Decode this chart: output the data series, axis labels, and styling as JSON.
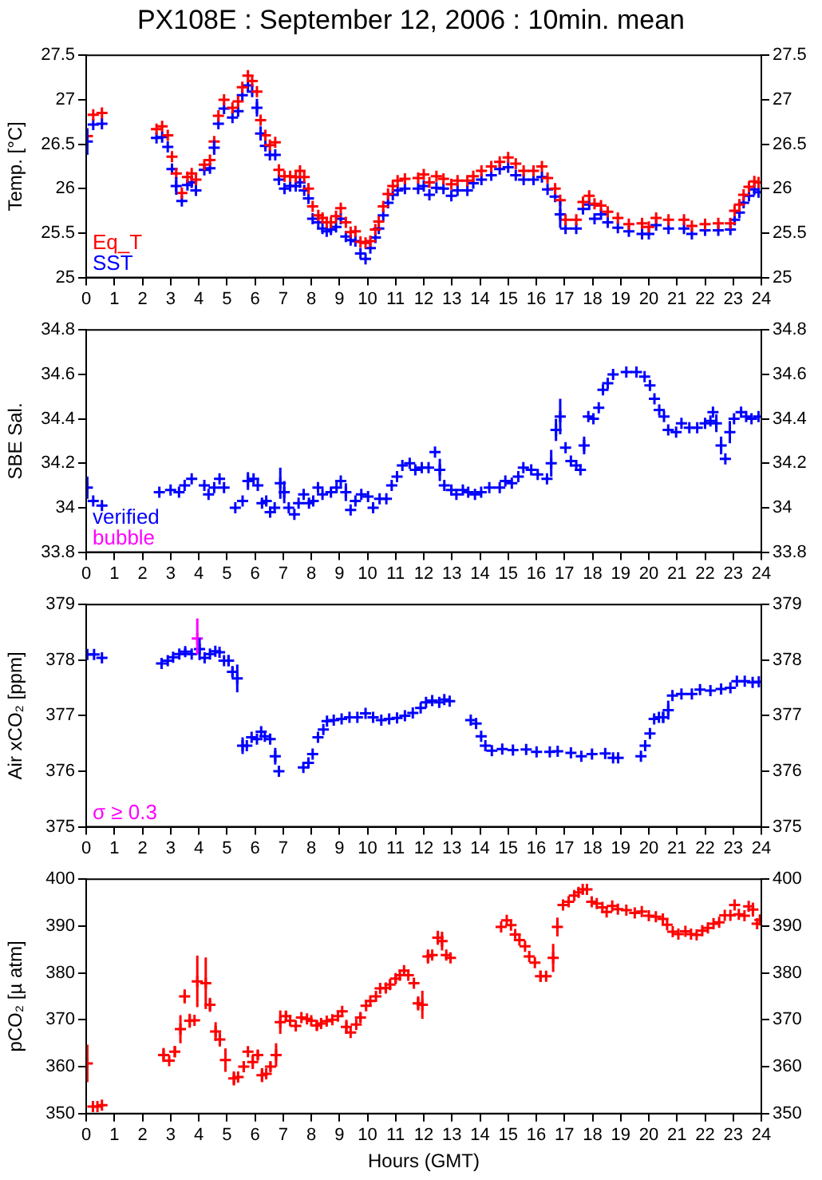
{
  "chart_data": [
    {
      "type": "scatter",
      "title": "PX108E : September 12, 2006 : 10min. mean",
      "ylabel": "Temp. [°C]",
      "marker": "cross",
      "legend": "bottom left",
      "xlim": [
        0,
        24
      ],
      "xticks": [
        0,
        1,
        2,
        3,
        4,
        5,
        6,
        7,
        8,
        9,
        10,
        11,
        12,
        13,
        14,
        15,
        16,
        17,
        18,
        19,
        20,
        21,
        22,
        23,
        24
      ],
      "ylim": [
        25,
        27.5
      ],
      "yticks": [
        25,
        25.5,
        26,
        26.5,
        27,
        27.5
      ],
      "y2lim": [
        25,
        27.5
      ],
      "y2ticks": [
        25,
        25.5,
        26,
        26.5,
        27,
        27.5
      ],
      "x": [
        0.04,
        0.25,
        0.56,
        2.5,
        2.7,
        2.9,
        3.05,
        3.2,
        3.4,
        3.6,
        3.75,
        3.9,
        4.2,
        4.4,
        4.55,
        4.7,
        4.9,
        5.2,
        5.4,
        5.55,
        5.75,
        5.9,
        6.07,
        6.2,
        6.37,
        6.53,
        6.72,
        6.85,
        7.05,
        7.25,
        7.45,
        7.6,
        7.75,
        7.9,
        8.05,
        8.25,
        8.4,
        8.55,
        8.7,
        8.88,
        9.05,
        9.23,
        9.4,
        9.57,
        9.75,
        9.93,
        10.1,
        10.28,
        10.4,
        10.56,
        10.73,
        10.9,
        11.07,
        11.33,
        11.8,
        12.0,
        12.2,
        12.45,
        12.7,
        12.98,
        13.2,
        13.55,
        13.76,
        14.05,
        14.4,
        14.7,
        15.0,
        15.27,
        15.55,
        15.9,
        16.2,
        16.4,
        16.67,
        16.85,
        17.04,
        17.42,
        17.66,
        17.88,
        18.07,
        18.3,
        18.54,
        18.9,
        19.29,
        19.76,
        20.0,
        20.26,
        20.7,
        21.25,
        21.53,
        22.0,
        22.47,
        22.9,
        23.05,
        23.22,
        23.37,
        23.56,
        23.75,
        23.9
      ],
      "series": [
        {
          "name": "Eq_T",
          "color": "#ff0000",
          "values": [
            26.59,
            26.83,
            26.85,
            26.67,
            26.7,
            26.6,
            26.36,
            26.17,
            25.95,
            26.13,
            26.17,
            26.1,
            26.27,
            26.32,
            26.53,
            26.82,
            27.0,
            26.91,
            26.98,
            27.14,
            27.27,
            27.21,
            27.09,
            26.77,
            26.6,
            26.49,
            26.52,
            26.21,
            26.14,
            26.14,
            26.13,
            26.2,
            26.13,
            26.0,
            25.8,
            25.7,
            25.67,
            25.62,
            25.62,
            25.69,
            25.78,
            25.62,
            25.51,
            25.52,
            25.4,
            25.39,
            25.41,
            25.54,
            25.63,
            25.8,
            25.94,
            26.03,
            26.09,
            26.11,
            26.12,
            26.16,
            26.07,
            26.14,
            26.11,
            26.05,
            26.09,
            26.09,
            26.14,
            26.2,
            26.25,
            26.3,
            26.35,
            26.28,
            26.2,
            26.2,
            26.25,
            26.12,
            26.0,
            25.87,
            25.65,
            25.65,
            25.85,
            25.92,
            25.83,
            25.81,
            25.74,
            25.67,
            25.6,
            25.61,
            25.57,
            25.67,
            25.65,
            25.65,
            25.58,
            25.6,
            25.61,
            25.61,
            25.75,
            25.82,
            25.93,
            26.02,
            26.08,
            26.07
          ]
        },
        {
          "name": "SST",
          "color": "#0000ff",
          "values": [
            26.53,
            26.72,
            26.73,
            26.57,
            26.58,
            26.47,
            26.22,
            26.03,
            25.86,
            26.04,
            26.07,
            25.98,
            26.21,
            26.23,
            26.46,
            26.73,
            26.9,
            26.8,
            26.87,
            27.05,
            27.16,
            27.09,
            26.91,
            26.62,
            26.48,
            26.38,
            26.38,
            26.1,
            26.0,
            26.03,
            26.03,
            26.07,
            25.98,
            25.89,
            25.66,
            25.62,
            25.55,
            25.52,
            25.54,
            25.57,
            25.66,
            25.46,
            25.42,
            25.41,
            25.27,
            25.21,
            25.33,
            25.45,
            25.55,
            25.7,
            25.84,
            25.93,
            25.98,
            26.0,
            26.0,
            26.03,
            25.93,
            26.01,
            26.0,
            25.92,
            25.98,
            25.98,
            26.06,
            26.1,
            26.15,
            26.22,
            26.24,
            26.15,
            26.1,
            26.1,
            26.13,
            25.99,
            25.91,
            25.71,
            25.55,
            25.55,
            25.77,
            25.82,
            25.66,
            25.71,
            25.62,
            25.56,
            25.52,
            25.49,
            25.49,
            25.59,
            25.55,
            25.55,
            25.49,
            25.53,
            25.53,
            25.54,
            25.65,
            25.73,
            25.84,
            25.92,
            25.99,
            25.96
          ],
          "errors": [
            0.15,
            null,
            null,
            null,
            null,
            null,
            null,
            0.1,
            null,
            null,
            null,
            null,
            null,
            null,
            0.08,
            null,
            null,
            null,
            null,
            null,
            null,
            null,
            0.1,
            0.08,
            null,
            null,
            null,
            null,
            null,
            null,
            null,
            null,
            null,
            null,
            null,
            null,
            null,
            null,
            null,
            null,
            null,
            null,
            null,
            null,
            null,
            null,
            null,
            null,
            null,
            null,
            null,
            null,
            null,
            null,
            null,
            null,
            null,
            null,
            null,
            null,
            null,
            null,
            null,
            null,
            null,
            null,
            null,
            null,
            null,
            null,
            null,
            null,
            null,
            0.15,
            null,
            null,
            null,
            null,
            null,
            null,
            null,
            null,
            null,
            null,
            null,
            null,
            null,
            null,
            null,
            null,
            null,
            null,
            null,
            null,
            null,
            null,
            null,
            null
          ]
        }
      ]
    },
    {
      "type": "scatter",
      "ylabel": "SBE Sal.",
      "marker": "cross",
      "legend": "bottom left",
      "xlim": [
        0,
        24
      ],
      "xticks": [
        0,
        1,
        2,
        3,
        4,
        5,
        6,
        7,
        8,
        9,
        10,
        11,
        12,
        13,
        14,
        15,
        16,
        17,
        18,
        19,
        20,
        21,
        22,
        23,
        24
      ],
      "ylim": [
        33.8,
        34.8
      ],
      "yticks": [
        33.8,
        34,
        34.2,
        34.4,
        34.6,
        34.8
      ],
      "y2lim": [
        33.8,
        34.8
      ],
      "y2ticks": [
        33.8,
        34,
        34.2,
        34.4,
        34.6,
        34.8
      ],
      "x": [
        0.04,
        0.25,
        0.56,
        2.6,
        3.0,
        3.3,
        3.5,
        3.75,
        4.2,
        4.35,
        4.55,
        4.74,
        4.9,
        5.3,
        5.56,
        5.75,
        5.95,
        6.1,
        6.25,
        6.4,
        6.54,
        6.7,
        6.9,
        7.04,
        7.2,
        7.4,
        7.55,
        7.73,
        7.92,
        8.07,
        8.24,
        8.4,
        8.7,
        8.9,
        9.05,
        9.23,
        9.4,
        9.57,
        9.78,
        10.02,
        10.2,
        10.43,
        10.67,
        10.86,
        11.05,
        11.24,
        11.5,
        11.7,
        11.93,
        12.17,
        12.4,
        12.57,
        12.73,
        12.98,
        13.16,
        13.39,
        13.58,
        13.82,
        14.04,
        14.33,
        14.7,
        14.9,
        15.13,
        15.36,
        15.54,
        15.82,
        16.05,
        16.38,
        16.53,
        16.7,
        16.85,
        17.04,
        17.23,
        17.42,
        17.57,
        17.7,
        17.85,
        18.03,
        18.22,
        18.37,
        18.54,
        18.73,
        19.2,
        19.56,
        19.85,
        20.04,
        20.2,
        20.37,
        20.54,
        20.69,
        20.97,
        21.16,
        21.44,
        21.72,
        22.0,
        22.19,
        22.28,
        22.4,
        22.57,
        22.72,
        22.88,
        23.03,
        23.28,
        23.46,
        23.65,
        23.9
      ],
      "series": [
        {
          "name": "verified",
          "color": "#0000ff",
          "values": [
            34.09,
            34.03,
            34.01,
            34.07,
            34.08,
            34.07,
            34.1,
            34.13,
            34.1,
            34.06,
            34.09,
            34.13,
            34.09,
            34.0,
            34.03,
            34.12,
            34.13,
            34.1,
            34.02,
            34.03,
            33.98,
            34.0,
            34.11,
            34.07,
            34.0,
            33.97,
            34.02,
            34.06,
            34.02,
            34.03,
            34.09,
            34.06,
            34.07,
            34.09,
            34.12,
            34.07,
            33.99,
            34.03,
            34.06,
            34.05,
            34.0,
            34.04,
            34.04,
            34.1,
            34.14,
            34.19,
            34.2,
            34.17,
            34.18,
            34.18,
            34.25,
            34.17,
            34.1,
            34.08,
            34.06,
            34.08,
            34.07,
            34.06,
            34.07,
            34.09,
            34.09,
            34.12,
            34.11,
            34.14,
            34.18,
            34.17,
            34.15,
            34.13,
            34.2,
            34.35,
            34.41,
            34.27,
            34.21,
            34.19,
            34.17,
            34.28,
            34.41,
            34.4,
            34.45,
            34.53,
            34.56,
            34.6,
            34.61,
            34.61,
            34.59,
            34.55,
            34.49,
            34.44,
            34.41,
            34.35,
            34.34,
            34.38,
            34.36,
            34.36,
            34.38,
            34.39,
            34.43,
            34.38,
            34.28,
            34.22,
            34.34,
            34.4,
            34.43,
            34.41,
            34.4,
            34.41
          ],
          "errors": [
            0.05,
            null,
            null,
            null,
            null,
            null,
            null,
            null,
            null,
            null,
            null,
            null,
            null,
            null,
            null,
            0.04,
            null,
            null,
            null,
            null,
            null,
            null,
            0.07,
            0.05,
            null,
            null,
            null,
            null,
            null,
            null,
            null,
            null,
            null,
            null,
            null,
            0.04,
            null,
            null,
            null,
            null,
            null,
            null,
            null,
            null,
            null,
            null,
            null,
            null,
            null,
            null,
            null,
            0.05,
            null,
            null,
            null,
            null,
            null,
            null,
            null,
            null,
            null,
            null,
            null,
            null,
            null,
            null,
            null,
            null,
            0.06,
            0.05,
            0.08,
            null,
            null,
            null,
            null,
            0.04,
            null,
            null,
            null,
            null,
            null,
            null,
            null,
            null,
            null,
            null,
            null,
            null,
            null,
            null,
            null,
            null,
            null,
            null,
            null,
            null,
            null,
            0.04,
            0.04,
            null,
            0.05,
            null,
            null,
            null,
            null,
            null
          ]
        },
        {
          "name": "bubble",
          "color": "#ff00ff",
          "values": [
            null,
            null,
            null,
            null,
            null,
            null,
            null,
            null,
            null,
            null,
            null,
            null,
            null,
            null,
            null,
            null,
            null,
            null,
            null,
            null,
            null,
            null,
            null,
            null,
            null,
            null,
            null,
            null,
            null,
            null,
            null,
            null,
            null,
            null,
            null,
            null,
            null,
            null,
            null,
            null,
            null,
            null,
            null,
            null,
            null,
            null,
            null,
            null,
            null,
            null,
            null,
            null,
            null,
            null,
            null,
            null,
            null,
            null,
            null,
            null,
            null,
            null,
            null,
            null,
            null,
            null,
            null,
            null,
            null,
            null,
            null,
            null,
            null,
            null,
            null,
            null,
            null,
            null,
            null,
            null,
            null,
            null,
            null,
            null,
            null,
            null,
            null,
            null,
            null,
            null,
            null,
            null,
            null,
            null,
            null,
            null,
            null,
            null,
            null,
            null,
            null,
            null,
            null,
            null,
            null,
            null
          ]
        }
      ]
    },
    {
      "type": "scatter",
      "ylabel": "Air xCO₂ [ppm]",
      "marker": "cross",
      "legend": "bottom left",
      "xlim": [
        0,
        24
      ],
      "xticks": [
        0,
        1,
        2,
        3,
        4,
        5,
        6,
        7,
        8,
        9,
        10,
        11,
        12,
        13,
        14,
        15,
        16,
        17,
        18,
        19,
        20,
        21,
        22,
        23,
        24
      ],
      "ylim": [
        375,
        379
      ],
      "yticks": [
        375,
        376,
        377,
        378,
        379
      ],
      "y2lim": [
        375,
        379
      ],
      "y2ticks": [
        375,
        376,
        377,
        378,
        379
      ],
      "series": [
        {
          "color": "#0000ff",
          "x": [
            0.04,
            0.28,
            0.56,
            2.68,
            2.9,
            3.09,
            3.31,
            3.52,
            3.75,
            4.03,
            4.21,
            4.4,
            4.59,
            4.74,
            4.9,
            5.06,
            5.2,
            5.37,
            5.56,
            5.71,
            5.88,
            6.07,
            6.22,
            6.35,
            6.54,
            6.72,
            6.85,
            7.72,
            7.9,
            8.05,
            8.24,
            8.43,
            8.56,
            8.8,
            9.08,
            9.36,
            9.64,
            9.93,
            10.2,
            10.49,
            10.77,
            11.05,
            11.33,
            11.61,
            11.89,
            12.08,
            12.3,
            12.55,
            12.73,
            12.92,
            13.67,
            13.86,
            14.04,
            14.19,
            14.42,
            14.79,
            15.17,
            15.64,
            16.01,
            16.48,
            16.76,
            17.23,
            17.6,
            17.98,
            18.45,
            18.73,
            18.91,
            19.72,
            19.87,
            20.04,
            20.19,
            20.36,
            20.51,
            20.69,
            20.84,
            21.16,
            21.53,
            21.82,
            22.19,
            22.57,
            22.9,
            23.13,
            23.41,
            23.69,
            23.91
          ],
          "values": [
            378.1,
            378.1,
            378.04,
            377.94,
            377.99,
            378.05,
            378.11,
            378.15,
            378.11,
            378.2,
            378.04,
            378.11,
            378.16,
            378.14,
            377.99,
            377.99,
            377.79,
            377.67,
            376.46,
            376.46,
            376.61,
            376.58,
            376.71,
            376.63,
            376.58,
            376.27,
            376.0,
            376.07,
            376.15,
            376.31,
            376.61,
            376.75,
            376.9,
            376.92,
            376.94,
            376.97,
            376.97,
            377.04,
            376.97,
            376.92,
            376.94,
            376.96,
            377.0,
            377.05,
            377.14,
            377.24,
            377.27,
            377.24,
            377.29,
            377.26,
            376.92,
            376.86,
            376.63,
            376.46,
            376.37,
            376.4,
            376.38,
            376.39,
            376.35,
            376.35,
            376.36,
            376.33,
            376.27,
            376.31,
            376.32,
            376.24,
            376.24,
            376.27,
            376.46,
            376.68,
            376.94,
            376.97,
            376.97,
            377.1,
            377.36,
            377.39,
            377.39,
            377.47,
            377.45,
            377.48,
            377.5,
            377.62,
            377.62,
            377.6,
            377.61
          ],
          "errors": [
            null,
            null,
            null,
            null,
            null,
            null,
            null,
            0.06,
            null,
            0.2,
            null,
            null,
            null,
            null,
            null,
            0.1,
            0.1,
            0.25,
            0.15,
            null,
            null,
            null,
            null,
            null,
            null,
            0.15,
            null,
            null,
            null,
            null,
            null,
            null,
            null,
            null,
            null,
            null,
            null,
            null,
            null,
            null,
            null,
            null,
            null,
            null,
            null,
            null,
            null,
            null,
            null,
            null,
            null,
            null,
            null,
            null,
            null,
            null,
            null,
            null,
            null,
            null,
            null,
            null,
            null,
            null,
            null,
            null,
            null,
            null,
            null,
            null,
            null,
            null,
            0.1,
            0.17,
            null,
            null,
            null,
            null,
            null,
            null,
            null,
            null,
            null,
            null,
            null
          ]
        },
        {
          "name": "σ ≥ 0.3",
          "color": "#ff00ff",
          "x": [
            3.95
          ],
          "values": [
            378.39
          ],
          "errors": [
            [
              378.1,
              378.75
            ]
          ]
        }
      ]
    },
    {
      "type": "scatter",
      "xlabel": "Hours (GMT)",
      "ylabel": "pCO₂ [µ atm]",
      "marker": "cross",
      "xlim": [
        0,
        24
      ],
      "xticks": [
        0,
        1,
        2,
        3,
        4,
        5,
        6,
        7,
        8,
        9,
        10,
        11,
        12,
        13,
        14,
        15,
        16,
        17,
        18,
        19,
        20,
        21,
        22,
        23,
        24
      ],
      "ylim": [
        350,
        400
      ],
      "yticks": [
        350,
        360,
        370,
        380,
        390,
        400
      ],
      "y2lim": [
        350,
        400
      ],
      "y2ticks": [
        350,
        360,
        370,
        380,
        390,
        400
      ],
      "x": [
        0.04,
        0.24,
        0.4,
        0.56,
        2.75,
        2.95,
        3.15,
        3.35,
        3.5,
        3.68,
        3.85,
        3.95,
        4.25,
        4.4,
        4.6,
        4.75,
        4.95,
        5.25,
        5.4,
        5.6,
        5.75,
        5.92,
        6.1,
        6.25,
        6.4,
        6.55,
        6.75,
        6.9,
        7.1,
        7.25,
        7.45,
        7.65,
        7.85,
        8.0,
        8.2,
        8.35,
        8.55,
        8.75,
        8.95,
        9.1,
        9.25,
        9.4,
        9.6,
        9.75,
        9.95,
        10.1,
        10.3,
        10.45,
        10.65,
        10.8,
        11.0,
        11.15,
        11.3,
        11.45,
        11.65,
        11.8,
        11.95,
        12.15,
        12.3,
        12.5,
        12.65,
        12.8,
        12.95,
        14.75,
        14.95,
        15.1,
        15.25,
        15.4,
        15.6,
        15.75,
        15.95,
        16.15,
        16.35,
        16.6,
        16.75,
        16.95,
        17.15,
        17.35,
        17.5,
        17.65,
        17.8,
        17.97,
        18.15,
        18.35,
        18.5,
        18.7,
        18.9,
        19.2,
        19.5,
        19.75,
        20.0,
        20.25,
        20.5,
        20.65,
        20.85,
        21.05,
        21.3,
        21.5,
        21.7,
        21.9,
        22.1,
        22.3,
        22.5,
        22.7,
        22.9,
        23.05,
        23.2,
        23.4,
        23.55,
        23.7,
        23.85,
        23.95
      ],
      "series": [
        {
          "color": "#ff0000",
          "values": [
            360.7,
            351.5,
            351.5,
            351.8,
            362.5,
            361.3,
            363.2,
            368,
            375,
            369.8,
            369.9,
            378.2,
            377.8,
            373.2,
            367.5,
            365.8,
            361.4,
            357.5,
            357.8,
            360,
            363.2,
            361,
            362.5,
            358.2,
            358.5,
            360,
            362.5,
            369.5,
            370.8,
            369.8,
            368.7,
            370.5,
            370.2,
            369.8,
            368.8,
            369.2,
            369.7,
            370,
            370.8,
            371.8,
            368.5,
            367.3,
            369,
            370.5,
            373,
            374,
            375,
            376.7,
            376.8,
            377.5,
            378.8,
            379.5,
            380.5,
            379.5,
            377.8,
            373.5,
            373.2,
            383.5,
            383.8,
            387.5,
            386.8,
            383.8,
            383.2,
            389.8,
            391.2,
            390.2,
            388.2,
            387,
            385.7,
            383.5,
            382.2,
            379.3,
            379.3,
            383.2,
            389.8,
            394.5,
            395.2,
            396.5,
            397.2,
            397.8,
            397.8,
            395.2,
            394.8,
            394,
            393,
            394.3,
            393.6,
            393.4,
            392.8,
            393.1,
            392.2,
            392,
            391.5,
            390.3,
            388.8,
            388.3,
            388.9,
            388.3,
            388.1,
            389,
            389.6,
            390.5,
            390.8,
            392.3,
            392.3,
            394.5,
            392.5,
            392.2,
            394.2,
            393.5,
            390.5,
            391.3
          ],
          "errors": [
            4,
            null,
            null,
            null,
            1.5,
            null,
            1.2,
            3,
            1.5,
            1.5,
            null,
            5.5,
            5.5,
            1.5,
            2,
            1.5,
            2.5,
            1.5,
            null,
            1.2,
            null,
            1.5,
            1,
            1.5,
            null,
            1,
            2.5,
            2.5,
            1,
            null,
            null,
            null,
            null,
            null,
            1,
            null,
            null,
            null,
            null,
            null,
            1.5,
            null,
            null,
            1,
            null,
            null,
            null,
            null,
            1,
            1,
            1,
            null,
            null,
            null,
            null,
            1.5,
            3,
            1.5,
            null,
            1.5,
            2,
            null,
            null,
            null,
            null,
            null,
            null,
            null,
            null,
            null,
            null,
            1.2,
            null,
            3,
            2,
            null,
            null,
            null,
            null,
            null,
            null,
            null,
            null,
            null,
            null,
            null,
            null,
            null,
            null,
            null,
            null,
            null,
            null,
            null,
            null,
            null,
            null,
            null,
            null,
            null,
            null,
            null,
            null,
            null,
            null,
            null,
            null,
            null,
            null,
            1.5,
            null,
            null
          ]
        }
      ]
    }
  ]
}
